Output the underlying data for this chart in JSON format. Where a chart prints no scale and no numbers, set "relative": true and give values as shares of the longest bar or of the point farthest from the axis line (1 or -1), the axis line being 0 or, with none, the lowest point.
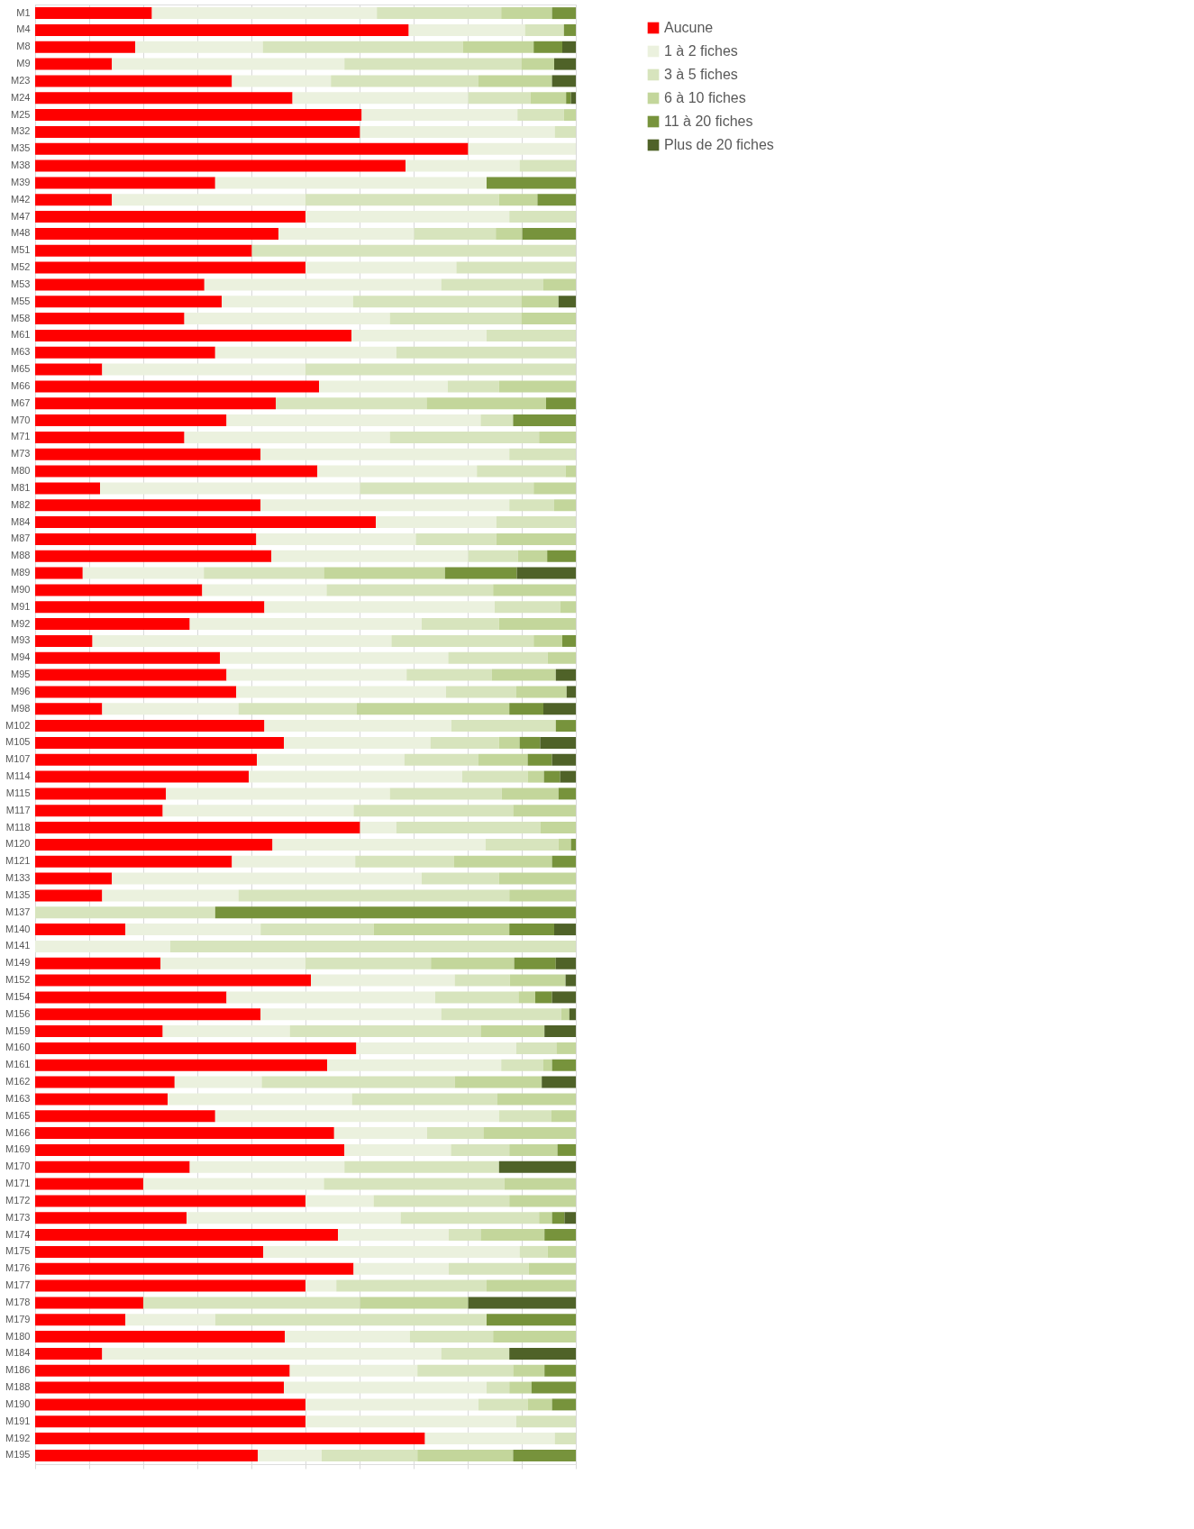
{
  "chart_data": {
    "type": "bar",
    "orientation": "horizontal",
    "stacked": true,
    "relative": true,
    "grid": "x",
    "legend": "right",
    "categories": [
      "M1",
      "M4",
      "M8",
      "M9",
      "M23",
      "M24",
      "M25",
      "M32",
      "M35",
      "M38",
      "M39",
      "M42",
      "M47",
      "M48",
      "M51",
      "M52",
      "M53",
      "M55",
      "M58",
      "M61",
      "M63",
      "M65",
      "M66",
      "M67",
      "M70",
      "M71",
      "M73",
      "M80",
      "M81",
      "M82",
      "M84",
      "M87",
      "M88",
      "M89",
      "M90",
      "M91",
      "M92",
      "M93",
      "M94",
      "M95",
      "M96",
      "M98",
      "M102",
      "M105",
      "M107",
      "M114",
      "M115",
      "M117",
      "M118",
      "M120",
      "M121",
      "M133",
      "M135",
      "M137",
      "M140",
      "M141",
      "M149",
      "M152",
      "M154",
      "M156",
      "M159",
      "M160",
      "M161",
      "M162",
      "M163",
      "M165",
      "M166",
      "M169",
      "M170",
      "M171",
      "M172",
      "M173",
      "M174",
      "M175",
      "M176",
      "M177",
      "M178",
      "M179",
      "M180",
      "M184",
      "M186",
      "M188",
      "M190",
      "M191",
      "M192",
      "M195"
    ],
    "series": [
      {
        "name": "Aucune",
        "color": "#ff0000",
        "values": [
          0.216,
          0.691,
          0.185,
          0.142,
          0.364,
          0.476,
          0.604,
          0.601,
          0.801,
          0.685,
          0.333,
          0.142,
          0.5,
          0.45,
          0.401,
          0.5,
          0.313,
          0.345,
          0.276,
          0.585,
          0.333,
          0.124,
          0.525,
          0.445,
          0.354,
          0.276,
          0.417,
          0.522,
          0.12,
          0.417,
          0.63,
          0.409,
          0.437,
          0.088,
          0.309,
          0.424,
          0.286,
          0.106,
          0.342,
          0.354,
          0.372,
          0.124,
          0.424,
          0.46,
          0.41,
          0.395,
          0.242,
          0.236,
          0.601,
          0.439,
          0.364,
          0.142,
          0.124,
          0,
          0.167,
          0,
          0.232,
          0.51,
          0.354,
          0.417,
          0.236,
          0.594,
          0.54,
          0.258,
          0.245,
          0.333,
          0.553,
          0.572,
          0.286,
          0.2,
          0.5,
          0.28,
          0.56,
          0.422,
          0.589,
          0.5,
          0.2,
          0.167,
          0.462,
          0.124,
          0.471,
          0.46,
          0.5,
          0.5,
          0.721,
          0.412
        ]
      },
      {
        "name": "1 à 2 fiches",
        "color": "#ebf1de",
        "values": [
          0.416,
          0.215,
          0.236,
          0.43,
          0.183,
          0.325,
          0.288,
          0.36,
          0.199,
          0.211,
          0.502,
          0.358,
          0.377,
          0.251,
          0,
          0.279,
          0.438,
          0.243,
          0.38,
          0.25,
          0.335,
          0.376,
          0.238,
          0,
          0.47,
          0.38,
          0.46,
          0.295,
          0.481,
          0.46,
          0.223,
          0.295,
          0.364,
          0.224,
          0.23,
          0.426,
          0.429,
          0.553,
          0.422,
          0.333,
          0.388,
          0.252,
          0.346,
          0.271,
          0.273,
          0.395,
          0.414,
          0.353,
          0.067,
          0.394,
          0.228,
          0.573,
          0.252,
          0,
          0.25,
          0.25,
          0.268,
          0.266,
          0.386,
          0.334,
          0.235,
          0.296,
          0.322,
          0.161,
          0.341,
          0.525,
          0.172,
          0.197,
          0.286,
          0.334,
          0.126,
          0.396,
          0.205,
          0.474,
          0.176,
          0.057,
          0,
          0.166,
          0.231,
          0.627,
          0.236,
          0.375,
          0.32,
          0.39,
          0.24,
          0.118
        ]
      },
      {
        "name": "3 à 5 fiches",
        "color": "#d7e4bd",
        "values": [
          0.23,
          0.072,
          0.37,
          0.327,
          0.273,
          0.115,
          0.086,
          0.039,
          0,
          0.104,
          0,
          0.358,
          0.123,
          0.151,
          0.599,
          0.221,
          0.189,
          0.311,
          0.243,
          0.165,
          0.332,
          0.5,
          0.095,
          0.279,
          0.06,
          0.276,
          0.123,
          0.164,
          0.321,
          0.083,
          0.147,
          0.149,
          0.092,
          0.222,
          0.308,
          0.121,
          0.143,
          0.263,
          0.184,
          0.158,
          0.13,
          0.219,
          0.193,
          0.127,
          0.137,
          0.121,
          0.207,
          0.295,
          0.267,
          0.135,
          0.183,
          0.143,
          0.501,
          0.333,
          0.209,
          0.75,
          0.232,
          0.102,
          0.154,
          0.222,
          0.353,
          0.074,
          0.078,
          0.357,
          0.269,
          0.097,
          0.104,
          0.108,
          0.286,
          0.334,
          0.251,
          0.256,
          0.059,
          0.052,
          0.148,
          0.278,
          0.401,
          0.502,
          0.154,
          0.126,
          0.177,
          0.042,
          0.091,
          0.11,
          0.039,
          0.177
        ]
      },
      {
        "name": "6 à 10 fiches",
        "color": "#c3d69b",
        "values": [
          0.094,
          0,
          0.131,
          0.061,
          0.136,
          0.066,
          0.022,
          0,
          0,
          0,
          0,
          0.071,
          0,
          0.049,
          0,
          0,
          0.06,
          0.069,
          0.101,
          0,
          0,
          0,
          0.142,
          0.221,
          0,
          0.068,
          0,
          0.019,
          0.078,
          0.04,
          0,
          0.147,
          0.054,
          0.224,
          0.153,
          0.029,
          0.142,
          0.053,
          0.052,
          0.118,
          0.093,
          0.282,
          0,
          0.038,
          0.091,
          0.03,
          0.105,
          0.116,
          0.065,
          0.023,
          0.181,
          0.142,
          0.123,
          0,
          0.251,
          0,
          0.154,
          0.103,
          0.031,
          0.015,
          0.118,
          0.036,
          0.016,
          0.161,
          0.145,
          0.045,
          0.171,
          0.089,
          0,
          0.132,
          0.123,
          0.024,
          0.118,
          0.052,
          0.087,
          0.165,
          0.2,
          0,
          0.153,
          0,
          0.058,
          0.041,
          0.045,
          0,
          0,
          0.177
        ]
      },
      {
        "name": "11 à 20 fiches",
        "color": "#77933c",
        "values": [
          0.044,
          0.022,
          0.053,
          0,
          0,
          0.009,
          0,
          0,
          0,
          0,
          0.165,
          0.071,
          0,
          0.099,
          0,
          0,
          0,
          0,
          0,
          0,
          0,
          0,
          0,
          0.055,
          0.116,
          0,
          0,
          0,
          0,
          0,
          0,
          0,
          0.053,
          0.133,
          0,
          0,
          0,
          0.025,
          0,
          0,
          0,
          0.063,
          0.037,
          0.038,
          0.045,
          0.03,
          0.032,
          0,
          0,
          0.009,
          0.044,
          0,
          0,
          0.667,
          0.083,
          0,
          0.077,
          0,
          0.031,
          0,
          0,
          0,
          0.044,
          0,
          0,
          0,
          0,
          0.034,
          0,
          0,
          0,
          0.023,
          0.058,
          0,
          0,
          0,
          0,
          0.165,
          0,
          0,
          0.058,
          0.082,
          0.044,
          0,
          0,
          0.116
        ]
      },
      {
        "name": "Plus de 20 fiches",
        "color": "#4f6228",
        "values": [
          0,
          0,
          0.025,
          0.04,
          0.044,
          0.009,
          0,
          0,
          0,
          0,
          0,
          0,
          0,
          0,
          0,
          0,
          0,
          0.032,
          0,
          0,
          0,
          0,
          0,
          0,
          0,
          0,
          0,
          0,
          0,
          0,
          0,
          0,
          0,
          0.109,
          0,
          0,
          0,
          0,
          0,
          0.037,
          0.017,
          0.06,
          0,
          0.066,
          0.044,
          0.029,
          0,
          0,
          0,
          0,
          0,
          0,
          0,
          0,
          0.04,
          0,
          0.037,
          0.019,
          0.044,
          0.012,
          0.058,
          0,
          0,
          0.063,
          0,
          0,
          0,
          0,
          0.142,
          0,
          0,
          0.021,
          0,
          0,
          0,
          0,
          0.199,
          0,
          0,
          0.123,
          0,
          0,
          0,
          0,
          0,
          0
        ]
      }
    ]
  }
}
